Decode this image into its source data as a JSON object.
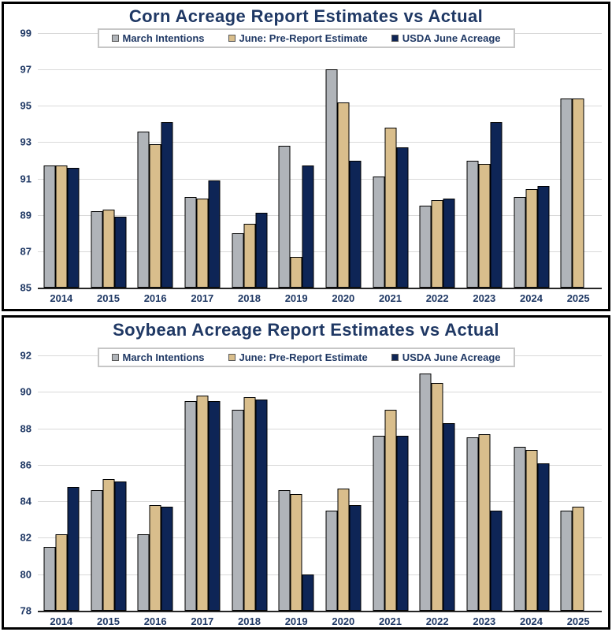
{
  "styles": {
    "title_color": "#1F3864",
    "axis_label_color": "#1F3864",
    "gridline_color": "#D9D9D9",
    "axis_line_color": "#262626",
    "bar_outline_color": "#000000",
    "legend_border_color": "#C6C6C6",
    "panel_border_color": "#000000",
    "background_color": "#FFFFFF"
  },
  "chart_data": [
    {
      "type": "bar",
      "title": "Corn Acreage Report Estimates vs Actual",
      "xlabel": "",
      "ylabel": "",
      "ylim": [
        85,
        99
      ],
      "ytick_step": 2,
      "grid": true,
      "legend_position": "top-center",
      "categories": [
        "2014",
        "2015",
        "2016",
        "2017",
        "2018",
        "2019",
        "2020",
        "2021",
        "2022",
        "2023",
        "2024",
        "2025"
      ],
      "series": [
        {
          "name": "March Intentions",
          "color": "#B0B4B9",
          "values": [
            91.7,
            89.2,
            93.6,
            90.0,
            88.0,
            92.8,
            97.0,
            91.1,
            89.5,
            92.0,
            90.0,
            95.4
          ]
        },
        {
          "name": "June: Pre-Report Estimate",
          "color": "#D9BE8C",
          "values": [
            91.7,
            89.3,
            92.9,
            89.9,
            88.5,
            86.7,
            95.2,
            93.8,
            89.8,
            91.8,
            90.4,
            95.4
          ]
        },
        {
          "name": "USDA June Acreage",
          "color": "#0E2556",
          "values": [
            91.6,
            88.9,
            94.1,
            90.9,
            89.1,
            91.7,
            92.0,
            92.7,
            89.9,
            94.1,
            90.6,
            null
          ]
        }
      ]
    },
    {
      "type": "bar",
      "title": "Soybean Acreage Report Estimates vs Actual",
      "xlabel": "",
      "ylabel": "",
      "ylim": [
        78,
        92
      ],
      "ytick_step": 2,
      "grid": true,
      "legend_position": "top-center",
      "categories": [
        "2014",
        "2015",
        "2016",
        "2017",
        "2018",
        "2019",
        "2020",
        "2021",
        "2022",
        "2023",
        "2024",
        "2025"
      ],
      "series": [
        {
          "name": "March Intentions",
          "color": "#B0B4B9",
          "values": [
            81.5,
            84.6,
            82.2,
            89.5,
            89.0,
            84.6,
            83.5,
            87.6,
            91.0,
            87.5,
            87.0,
            83.5
          ]
        },
        {
          "name": "June: Pre-Report Estimate",
          "color": "#D9BE8C",
          "values": [
            82.2,
            85.2,
            83.8,
            89.8,
            89.7,
            84.4,
            84.7,
            89.0,
            90.5,
            87.7,
            86.8,
            83.7
          ]
        },
        {
          "name": "USDA June Acreage",
          "color": "#0E2556",
          "values": [
            84.8,
            85.1,
            83.7,
            89.5,
            89.6,
            80.0,
            83.8,
            87.6,
            88.3,
            83.5,
            86.1,
            null
          ]
        }
      ]
    }
  ]
}
